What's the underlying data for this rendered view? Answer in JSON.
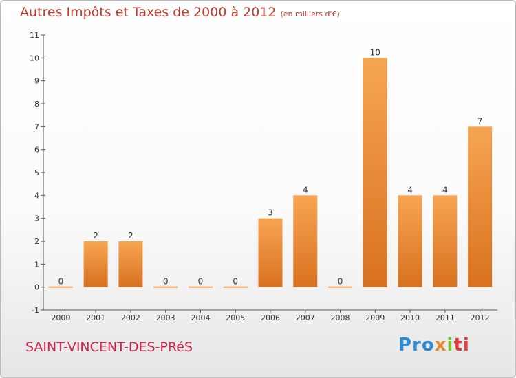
{
  "header": {
    "title": "Autres Impôts et Taxes de 2000 à 2012",
    "unit": "(en milliers d'€)"
  },
  "footer": {
    "commune": "SAINT-VINCENT-DES-PRéS",
    "brand_parts": [
      "Pro",
      "x",
      "i",
      "ti"
    ]
  },
  "colors": {
    "bar_top": "#f7a552",
    "bar_bottom": "#d8711f",
    "title": "#c0392b",
    "commune": "#d0214a"
  },
  "chart_data": {
    "type": "bar",
    "title": "Autres Impôts et Taxes de 2000 à 2012",
    "subtitle": "(en milliers d'€)",
    "categories": [
      "2000",
      "2001",
      "2002",
      "2003",
      "2004",
      "2005",
      "2006",
      "2007",
      "2008",
      "2009",
      "2010",
      "2011",
      "2012"
    ],
    "values": [
      0,
      2,
      2,
      0,
      0,
      0,
      3,
      4,
      0,
      10,
      4,
      4,
      7
    ],
    "ylim": [
      -1,
      11
    ],
    "yticks": [
      "-1",
      "0",
      "1",
      "2",
      "3",
      "4",
      "5",
      "6",
      "7",
      "8",
      "9",
      "10",
      "11"
    ],
    "grid": false,
    "legend": "none"
  }
}
